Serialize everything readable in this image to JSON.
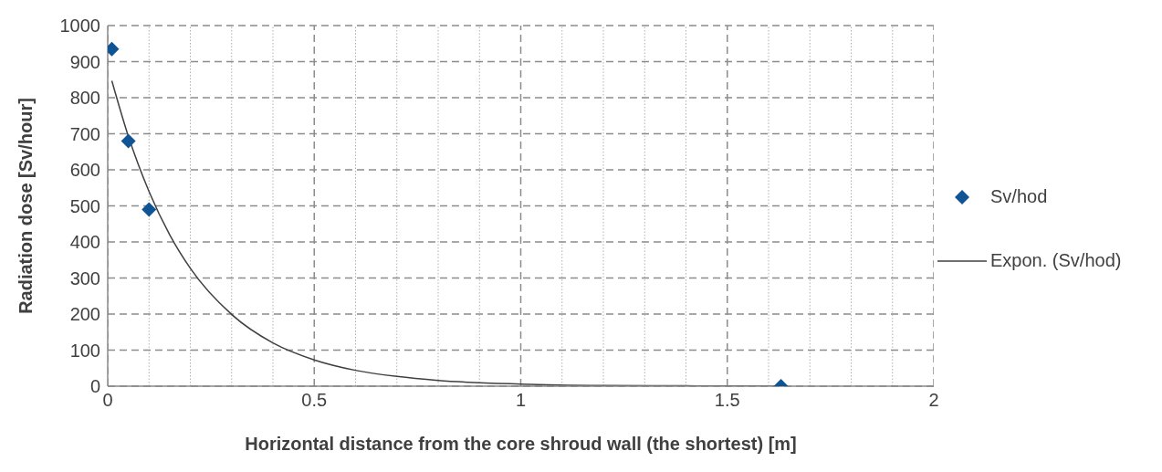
{
  "chart_data": {
    "type": "scatter",
    "xlabel": "Horizontal distance from the core shroud wall (the shortest) [m]",
    "ylabel": "Radiation dose [Sv/hour]",
    "xlim": [
      0,
      2
    ],
    "ylim": [
      0,
      1000
    ],
    "xticks": [
      0,
      {
        "value": 0.1,
        "label": null
      },
      {
        "value": 0.2,
        "label": null
      },
      {
        "value": 0.3,
        "label": null
      },
      {
        "value": 0.4,
        "label": null
      },
      0.5,
      {
        "value": 0.6,
        "label": null
      },
      {
        "value": 0.7,
        "label": null
      },
      {
        "value": 0.8,
        "label": null
      },
      {
        "value": 0.9,
        "label": null
      },
      1,
      {
        "value": 1.1,
        "label": null
      },
      {
        "value": 1.2,
        "label": null
      },
      {
        "value": 1.3,
        "label": null
      },
      {
        "value": 1.4,
        "label": null
      },
      1.5,
      {
        "value": 1.6,
        "label": null
      },
      {
        "value": 1.7,
        "label": null
      },
      {
        "value": 1.8,
        "label": null
      },
      {
        "value": 1.9,
        "label": null
      },
      2
    ],
    "yticks": [
      0,
      100,
      200,
      300,
      400,
      500,
      600,
      700,
      800,
      900,
      1000
    ],
    "grid": true,
    "legend": "right",
    "series": [
      {
        "name": "Sv/hod",
        "marker": "diamond",
        "color": "#0f5494",
        "x": [
          0.01,
          0.05,
          0.1,
          1.63
        ],
        "values": [
          935,
          680,
          490,
          0
        ]
      },
      {
        "name": "Expon. (Sv/hod)",
        "type": "line",
        "color": "#404040",
        "line_style": "solid",
        "x": [
          0.01,
          0.05,
          0.1,
          0.15,
          0.2,
          0.3,
          0.4,
          0.5,
          0.6,
          0.7,
          0.8,
          1.0,
          1.2,
          1.4,
          1.63
        ],
        "values": [
          847,
          693,
          540,
          420,
          327,
          199,
          120,
          73,
          44,
          27,
          16,
          6,
          2,
          1,
          0
        ]
      }
    ]
  }
}
